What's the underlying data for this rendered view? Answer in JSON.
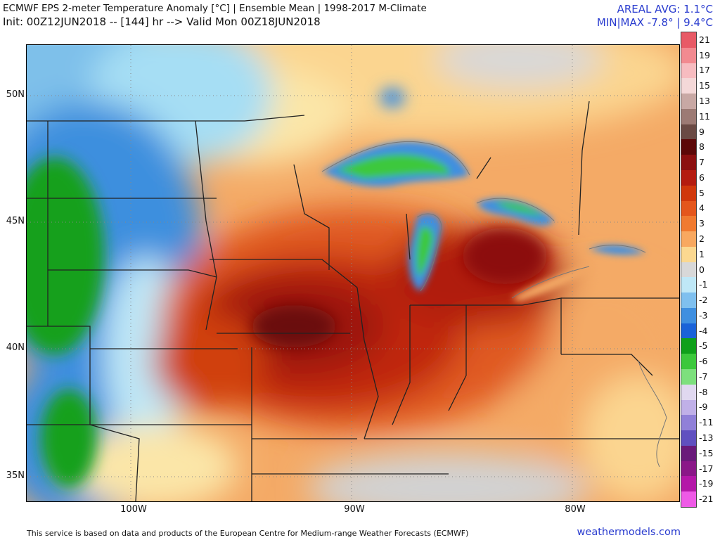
{
  "header": {
    "title_line1": "ECMWF EPS 2-meter Temperature Anomaly [°C] | Ensemble Mean | 1998-2017 M-Climate",
    "title_line2": "Init: 00Z12JUN2018 -- [144] hr --> Valid Mon 00Z18JUN2018",
    "areal_avg": "AREAL AVG: 1.1°C",
    "min_max": "MIN|MAX -7.8° | 9.4°C"
  },
  "map": {
    "region": "Upper Midwest / Great Lakes",
    "lat_labels": [
      "50N",
      "45N",
      "40N",
      "35N"
    ],
    "lon_labels": [
      "100W",
      "90W",
      "80W"
    ],
    "grid_lines": true
  },
  "colorbar": {
    "labels": [
      "21",
      "19",
      "17",
      "15",
      "13",
      "11",
      "9",
      "8",
      "7",
      "6",
      "5",
      "4",
      "3",
      "2",
      "1",
      "0",
      "-1",
      "-2",
      "-3",
      "-4",
      "-5",
      "-6",
      "-7",
      "-8",
      "-9",
      "-11",
      "-13",
      "-15",
      "-17",
      "-19",
      "-21"
    ],
    "colors": [
      "#e85a66",
      "#f28a90",
      "#f7bcc0",
      "#f4d8d8",
      "#c8a8a4",
      "#9c7a74",
      "#6a4a44",
      "#5c0808",
      "#8c1010",
      "#b41c10",
      "#d0380c",
      "#e4561c",
      "#f07a30",
      "#f8a860",
      "#fbd890",
      "#d8d8d8",
      "#bfe8f7",
      "#7fc0ef",
      "#3f8fe0",
      "#1a62d8",
      "#0fa01a",
      "#3cc83c",
      "#7de07d",
      "#e0d8f0",
      "#c0b0e8",
      "#9080d8",
      "#6050c0",
      "#6a1a7a",
      "#8a1888",
      "#b418a8",
      "#ee5ae6"
    ]
  },
  "footer": {
    "attribution": "This service is based on data and products of the European Centre for Medium-range Weather Forecasts (ECMWF)",
    "brand": "weathermodels.com"
  }
}
